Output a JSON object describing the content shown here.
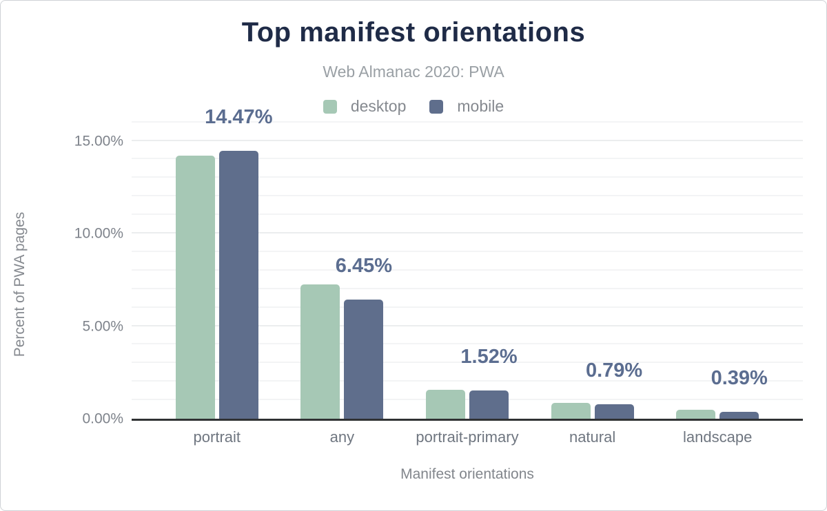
{
  "title": "Top manifest orientations",
  "subtitle": "Web Almanac 2020: PWA",
  "legend": {
    "items": [
      {
        "label": "desktop",
        "color": "#a6c8b5"
      },
      {
        "label": "mobile",
        "color": "#5f6e8c"
      }
    ]
  },
  "y_axis": {
    "title": "Percent of PWA pages",
    "ticks": [
      {
        "label": "0.00%",
        "value": 0
      },
      {
        "label": "5.00%",
        "value": 5
      },
      {
        "label": "10.00%",
        "value": 10
      },
      {
        "label": "15.00%",
        "value": 15
      }
    ]
  },
  "x_axis": {
    "title": "Manifest orientations"
  },
  "chart_data": {
    "type": "bar",
    "title": "Top manifest orientations",
    "subtitle": "Web Almanac 2020: PWA",
    "categories": [
      "portrait",
      "any",
      "portrait-primary",
      "natural",
      "landscape"
    ],
    "series": [
      {
        "name": "desktop",
        "color": "#a6c8b5",
        "values": [
          14.2,
          7.25,
          1.55,
          0.85,
          0.5
        ]
      },
      {
        "name": "mobile",
        "color": "#5f6e8c",
        "values": [
          14.47,
          6.45,
          1.52,
          0.79,
          0.39
        ]
      }
    ],
    "data_labels": [
      "14.47%",
      "6.45%",
      "1.52%",
      "0.79%",
      "0.39%"
    ],
    "data_labels_series": "mobile",
    "xlabel": "Manifest orientations",
    "ylabel": "Percent of PWA pages",
    "ylim": [
      0,
      16.25
    ],
    "grid": "horizontal lines every 1%, labeled every 5%",
    "legend_position": "top-center"
  },
  "colors": {
    "title": "#1f2b47",
    "subtitle": "#9aa0a5",
    "axis_text": "#7e838b",
    "category_text": "#6f7680",
    "data_label": "#5b6d90",
    "baseline": "#303234",
    "grid_minor": "#f3f4f5",
    "grid_major": "#ebedee",
    "desktop_bar": "#a6c8b5",
    "mobile_bar": "#5f6e8c"
  }
}
